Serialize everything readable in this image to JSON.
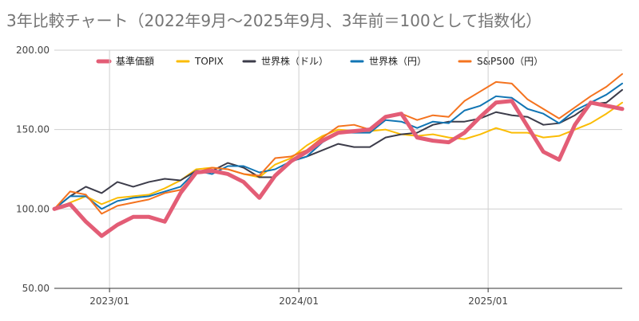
{
  "chart_data": {
    "type": "line",
    "title": "3年比較チャート（2022年9月〜2025年9月、3年前＝100として指数化）",
    "xlabel": "",
    "ylabel": "",
    "ylim": [
      50,
      200
    ],
    "yticks": [
      "50.00",
      "100.00",
      "150.00",
      "200.00"
    ],
    "ytick_values": [
      50,
      100,
      150,
      200
    ],
    "xticks": [
      {
        "label": "2023/01",
        "index": 3.5
      },
      {
        "label": "2024/01",
        "index": 15.5
      },
      {
        "label": "2025/01",
        "index": 27.5
      }
    ],
    "grid": true,
    "legend_position": "top",
    "x": [
      "2022/09",
      "2022/10",
      "2022/11",
      "2022/12",
      "2023/01",
      "2023/02",
      "2023/03",
      "2023/04",
      "2023/05",
      "2023/06",
      "2023/07",
      "2023/08",
      "2023/09",
      "2023/10",
      "2023/11",
      "2023/12",
      "2024/01",
      "2024/02",
      "2024/03",
      "2024/04",
      "2024/05",
      "2024/06",
      "2024/07",
      "2024/08",
      "2024/09",
      "2024/10",
      "2024/11",
      "2024/12",
      "2025/01",
      "2025/02",
      "2025/03",
      "2025/04",
      "2025/05",
      "2025/06",
      "2025/07",
      "2025/08",
      "2025/09"
    ],
    "series": [
      {
        "name": "TOPIX",
        "color": "#fbbc04",
        "width": 2,
        "values": [
          100,
          104,
          108,
          103,
          107,
          108,
          109,
          113,
          118,
          125,
          126,
          125,
          122,
          120,
          128,
          132,
          140,
          146,
          150,
          149,
          149,
          150,
          147,
          146,
          147,
          145,
          144,
          147,
          151,
          148,
          148,
          145,
          146,
          150,
          154,
          160,
          167
        ]
      },
      {
        "name": "世界株（ドル）",
        "color": "#3c3c4a",
        "width": 2,
        "values": [
          100,
          108,
          114,
          110,
          117,
          114,
          117,
          119,
          118,
          124,
          124,
          129,
          126,
          120,
          120,
          130,
          133,
          137,
          141,
          139,
          139,
          145,
          147,
          148,
          153,
          155,
          155,
          157,
          161,
          159,
          158,
          153,
          154,
          159,
          166,
          167,
          175
        ]
      },
      {
        "name": "世界株（円）",
        "color": "#1175b4",
        "width": 2,
        "values": [
          100,
          108,
          108,
          100,
          105,
          107,
          108,
          111,
          114,
          124,
          122,
          127,
          127,
          123,
          125,
          130,
          133,
          142,
          148,
          148,
          148,
          156,
          155,
          151,
          155,
          154,
          162,
          165,
          171,
          170,
          163,
          160,
          154,
          162,
          167,
          172,
          179
        ]
      },
      {
        "name": "S&P500（円）",
        "color": "#f4731f",
        "width": 2,
        "values": [
          100,
          111,
          109,
          97,
          102,
          104,
          106,
          110,
          112,
          123,
          126,
          125,
          122,
          121,
          132,
          133,
          137,
          145,
          152,
          153,
          150,
          158,
          160,
          156,
          159,
          158,
          168,
          174,
          180,
          179,
          169,
          163,
          157,
          164,
          171,
          177,
          185
        ]
      },
      {
        "name": "基準価額",
        "color": "#e35d76",
        "width": 5,
        "values": [
          100,
          103,
          92,
          83,
          90,
          95,
          95,
          92,
          110,
          123,
          124,
          122,
          117,
          107,
          121,
          130,
          136,
          143,
          148,
          149,
          150,
          158,
          160,
          145,
          143,
          142,
          148,
          158,
          167,
          168,
          152,
          136,
          131,
          153,
          167,
          165,
          163
        ]
      }
    ],
    "legend_order": [
      "基準価額",
      "TOPIX",
      "世界株（ドル）",
      "世界株（円）",
      "S&P500（円）"
    ]
  }
}
